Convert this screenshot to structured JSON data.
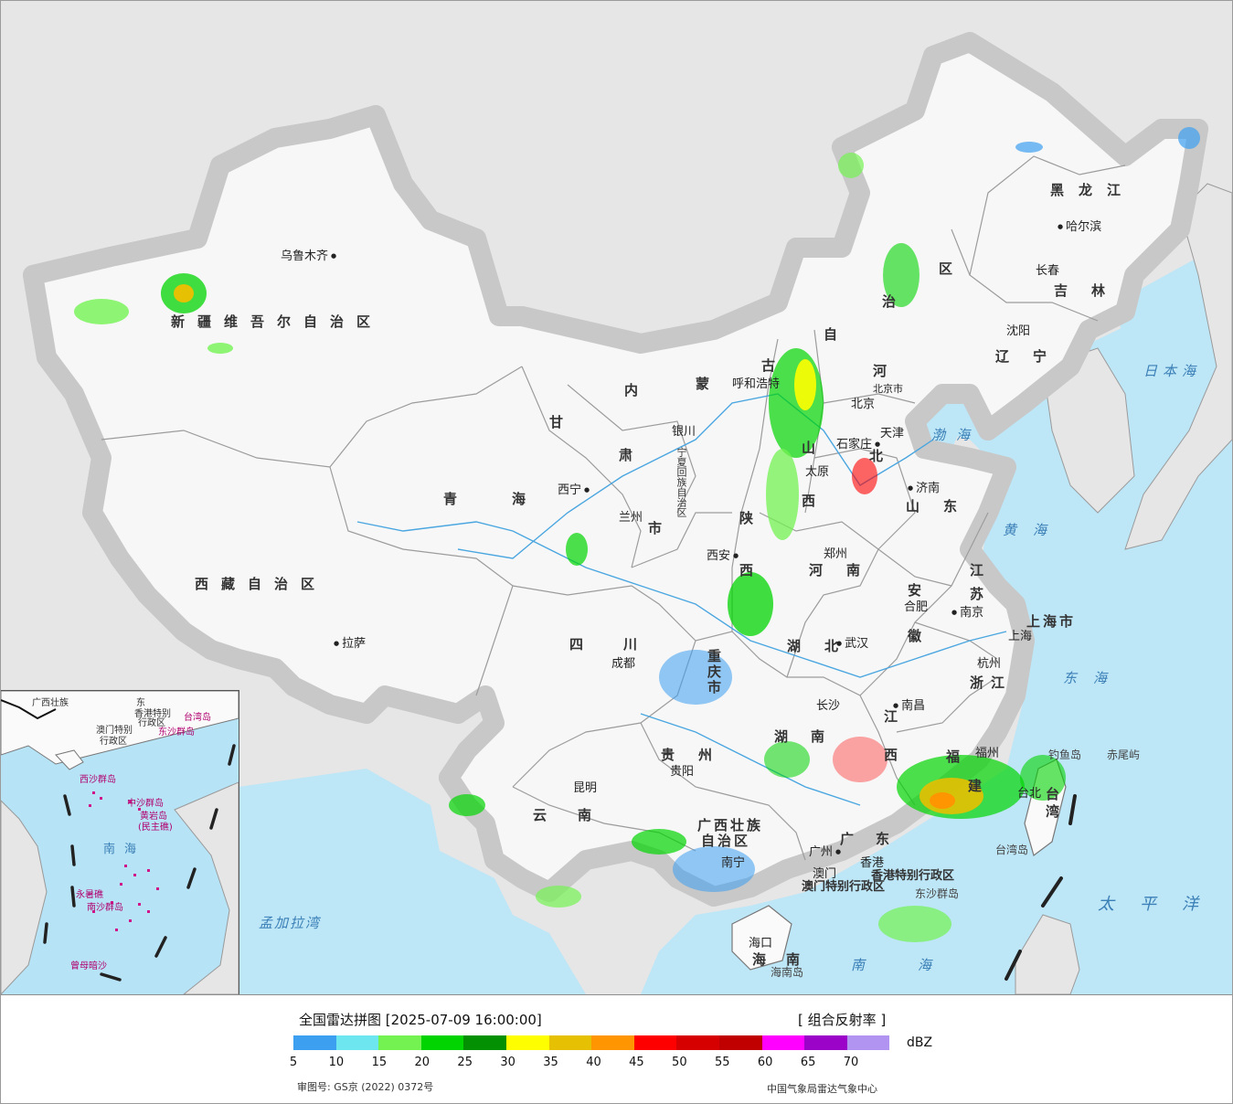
{
  "map": {
    "province_labels": [
      {
        "name": "xinjiang",
        "text": "新疆维吾尔自治区"
      },
      {
        "name": "xizang",
        "text": "西藏自治区"
      },
      {
        "name": "qinghai",
        "text": "青海"
      },
      {
        "name": "gansu-1",
        "text": "甘"
      },
      {
        "name": "gansu-2",
        "text": "肃"
      },
      {
        "name": "sichuan",
        "text": "四川"
      },
      {
        "name": "yunnan",
        "text": "云南"
      },
      {
        "name": "guizhou",
        "text": "贵州"
      },
      {
        "name": "guangxi-1",
        "text": "广西壮族"
      },
      {
        "name": "guangxi-2",
        "text": "自治区"
      },
      {
        "name": "guangdong",
        "text": "广东"
      },
      {
        "name": "hainan",
        "text": "海南"
      },
      {
        "name": "hunan-1",
        "text": "湖"
      },
      {
        "name": "hunan-2",
        "text": "南"
      },
      {
        "name": "hubei",
        "text": "湖北"
      },
      {
        "name": "henan",
        "text": "河南"
      },
      {
        "name": "shaanxi-1",
        "text": "陕"
      },
      {
        "name": "shaanxi-2",
        "text": "西"
      },
      {
        "name": "shanxi-1",
        "text": "山"
      },
      {
        "name": "shanxi-2",
        "text": "西"
      },
      {
        "name": "hebei-1",
        "text": "河"
      },
      {
        "name": "hebei-2",
        "text": "北"
      },
      {
        "name": "shandong",
        "text": "山东"
      },
      {
        "name": "jiangsu-1",
        "text": "江"
      },
      {
        "name": "jiangsu-2",
        "text": "苏"
      },
      {
        "name": "anhui-1",
        "text": "安"
      },
      {
        "name": "anhui-2",
        "text": "徽"
      },
      {
        "name": "zhejiang",
        "text": "浙江"
      },
      {
        "name": "jiangxi-1",
        "text": "江"
      },
      {
        "name": "jiangxi-2",
        "text": "西"
      },
      {
        "name": "fujian-1",
        "text": "福"
      },
      {
        "name": "fujian-2",
        "text": "建"
      },
      {
        "name": "taiwan",
        "text": "台湾"
      },
      {
        "name": "neimenggu-1",
        "text": "内"
      },
      {
        "name": "neimenggu-2",
        "text": "蒙"
      },
      {
        "name": "neimenggu-3",
        "text": "古"
      },
      {
        "name": "neimenggu-4",
        "text": "自"
      },
      {
        "name": "neimenggu-5",
        "text": "治"
      },
      {
        "name": "neimenggu-6",
        "text": "区"
      },
      {
        "name": "heilongjiang",
        "text": "黑龙江"
      },
      {
        "name": "jilin",
        "text": "吉林"
      },
      {
        "name": "liaoning",
        "text": "辽宁"
      },
      {
        "name": "ningxia",
        "text": "宁夏回族自治区"
      },
      {
        "name": "chongqing-1",
        "text": "重"
      },
      {
        "name": "chongqing-2",
        "text": "庆"
      },
      {
        "name": "chongqing-3",
        "text": "市"
      },
      {
        "name": "gansu-3",
        "text": "市"
      },
      {
        "name": "shanghai",
        "text": "上海市"
      },
      {
        "name": "hk",
        "text": "香港特别行政区"
      },
      {
        "name": "macau",
        "text": "澳门特别行政区"
      }
    ],
    "cities": [
      {
        "name": "urumqi",
        "text": "乌鲁木齐"
      },
      {
        "name": "lhasa",
        "text": "拉萨"
      },
      {
        "name": "xining",
        "text": "西宁"
      },
      {
        "name": "lanzhou",
        "text": "兰州"
      },
      {
        "name": "yinchuan",
        "text": "银川"
      },
      {
        "name": "hohhot",
        "text": "呼和浩特"
      },
      {
        "name": "beijing",
        "text": "北京市"
      },
      {
        "name": "beijing-2",
        "text": "北京"
      },
      {
        "name": "tianjin",
        "text": "天津"
      },
      {
        "name": "shijiazhuang",
        "text": "石家庄"
      },
      {
        "name": "taiyuan",
        "text": "太原"
      },
      {
        "name": "jinan",
        "text": "济南"
      },
      {
        "name": "zhengzhou",
        "text": "郑州"
      },
      {
        "name": "xian",
        "text": "西安"
      },
      {
        "name": "chengdu",
        "text": "成都"
      },
      {
        "name": "wuhan",
        "text": "武汉"
      },
      {
        "name": "hefei",
        "text": "合肥"
      },
      {
        "name": "nanjing",
        "text": "南京"
      },
      {
        "name": "shanghai-city",
        "text": "上海"
      },
      {
        "name": "hangzhou",
        "text": "杭州"
      },
      {
        "name": "nanchang",
        "text": "南昌"
      },
      {
        "name": "changsha",
        "text": "长沙"
      },
      {
        "name": "guiyang",
        "text": "贵阳"
      },
      {
        "name": "kunming",
        "text": "昆明"
      },
      {
        "name": "nanning",
        "text": "南宁"
      },
      {
        "name": "guangzhou",
        "text": "广州"
      },
      {
        "name": "macau-city",
        "text": "澳门"
      },
      {
        "name": "hongkong-city",
        "text": "香港"
      },
      {
        "name": "fuzhou",
        "text": "福州"
      },
      {
        "name": "taibei",
        "text": "台北"
      },
      {
        "name": "haikou",
        "text": "海口"
      },
      {
        "name": "shenyang",
        "text": "沈阳"
      },
      {
        "name": "changchun",
        "text": "长春"
      },
      {
        "name": "harbin",
        "text": "哈尔滨"
      }
    ],
    "seas": [
      {
        "name": "bohai",
        "text": "渤海"
      },
      {
        "name": "huanghai",
        "text": "黄海"
      },
      {
        "name": "donghai",
        "text": "东海"
      },
      {
        "name": "nanhai",
        "text": "南海"
      },
      {
        "name": "taipingyang",
        "text": "太平洋"
      },
      {
        "name": "ribenhai",
        "text": "日本海"
      },
      {
        "name": "mengjialawan",
        "text": "孟加拉湾"
      }
    ],
    "islands": [
      {
        "name": "diaoyudao",
        "text": "钓鱼岛"
      },
      {
        "name": "chiweiyu",
        "text": "赤尾屿"
      },
      {
        "name": "taiwandao",
        "text": "台湾岛"
      },
      {
        "name": "hainandao",
        "text": "海南岛"
      },
      {
        "name": "dongsha",
        "text": "东沙群岛"
      }
    ],
    "inset": {
      "labels": [
        {
          "name": "inset-guangxi",
          "text": "广西壮族"
        },
        {
          "name": "inset-guangdong",
          "text": "东"
        },
        {
          "name": "inset-hk",
          "text": "香港特别"
        },
        {
          "name": "inset-hk-2",
          "text": "行政区"
        },
        {
          "name": "inset-macau",
          "text": "澳门特别"
        },
        {
          "name": "inset-macau-2",
          "text": "行政区"
        },
        {
          "name": "inset-taiwan",
          "text": "台湾岛"
        },
        {
          "name": "inset-dongsha",
          "text": "东沙群岛"
        },
        {
          "name": "inset-xisha",
          "text": "西沙群岛"
        },
        {
          "name": "inset-zhongsha",
          "text": "中沙群岛"
        },
        {
          "name": "inset-huangyan",
          "text": "黄岩岛"
        },
        {
          "name": "inset-huangyan-2",
          "text": "(民主礁)"
        },
        {
          "name": "inset-nanhai",
          "text": "南海"
        },
        {
          "name": "inset-yongshu",
          "text": "永暑礁"
        },
        {
          "name": "inset-nansha",
          "text": "南沙群岛"
        },
        {
          "name": "inset-zengmu",
          "text": "曾母暗沙"
        }
      ]
    }
  },
  "legend": {
    "title": "全国雷达拼图 [2025-07-09 16:00:00]",
    "product": "[ 组合反射率 ]",
    "unit": "dBZ",
    "colors": [
      "#3d9ff0",
      "#6ee6ef",
      "#73f251",
      "#02d402",
      "#039003",
      "#fefe00",
      "#e6c002",
      "#ff9501",
      "#ff0000",
      "#d60000",
      "#c00000",
      "#ff01ff",
      "#9b04c8",
      "#b193f2"
    ],
    "ticks": [
      "5",
      "10",
      "15",
      "20",
      "25",
      "30",
      "35",
      "40",
      "45",
      "50",
      "55",
      "60",
      "65",
      "70"
    ],
    "review_number": "审图号: GS京 (2022) 0372号",
    "source": "中国气象局雷达气象中心"
  }
}
